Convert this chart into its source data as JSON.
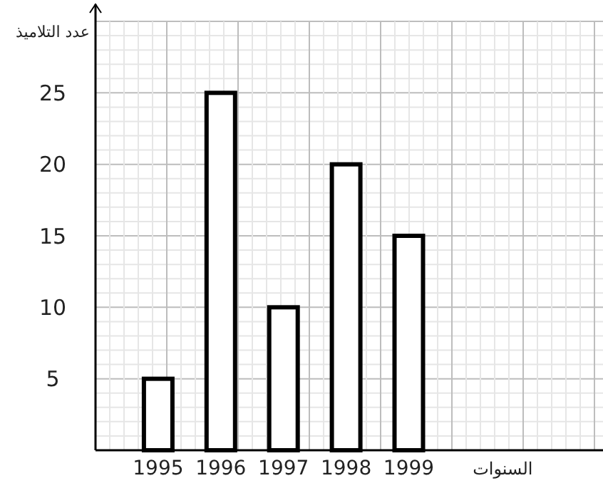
{
  "chart_data": {
    "type": "bar",
    "xlabel": "السنوات",
    "ylabel": "عدد التلاميذ",
    "categories": [
      "1995",
      "1996",
      "1997",
      "1998",
      "1999"
    ],
    "values": [
      5,
      25,
      10,
      20,
      15
    ],
    "color": "#ffffff",
    "ylim": [
      0,
      30
    ],
    "yticks": [
      5,
      10,
      15,
      20,
      25
    ],
    "grid": true
  }
}
